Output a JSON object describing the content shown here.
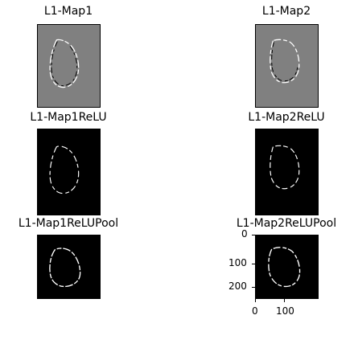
{
  "figure": {
    "panels": [
      {
        "id": "p1",
        "title": "L1-Map1",
        "style": "gray"
      },
      {
        "id": "p2",
        "title": "L1-Map2",
        "style": "gray"
      },
      {
        "id": "p3",
        "title": "L1-Map1ReLU",
        "style": "black"
      },
      {
        "id": "p4",
        "title": "L1-Map2ReLU",
        "style": "black"
      },
      {
        "id": "p5",
        "title": "L1-Map1ReLUPool",
        "style": "black"
      },
      {
        "id": "p6",
        "title": "L1-Map2ReLUPool",
        "style": "black"
      }
    ],
    "axes": {
      "y_ticks": [
        "0",
        "100",
        "200"
      ],
      "x_ticks": [
        "0",
        "100"
      ]
    },
    "colors": {
      "gray_bg": "#808080",
      "black_bg": "#000000",
      "edge_light": "#ffffff",
      "edge_dark": "#000000"
    }
  }
}
